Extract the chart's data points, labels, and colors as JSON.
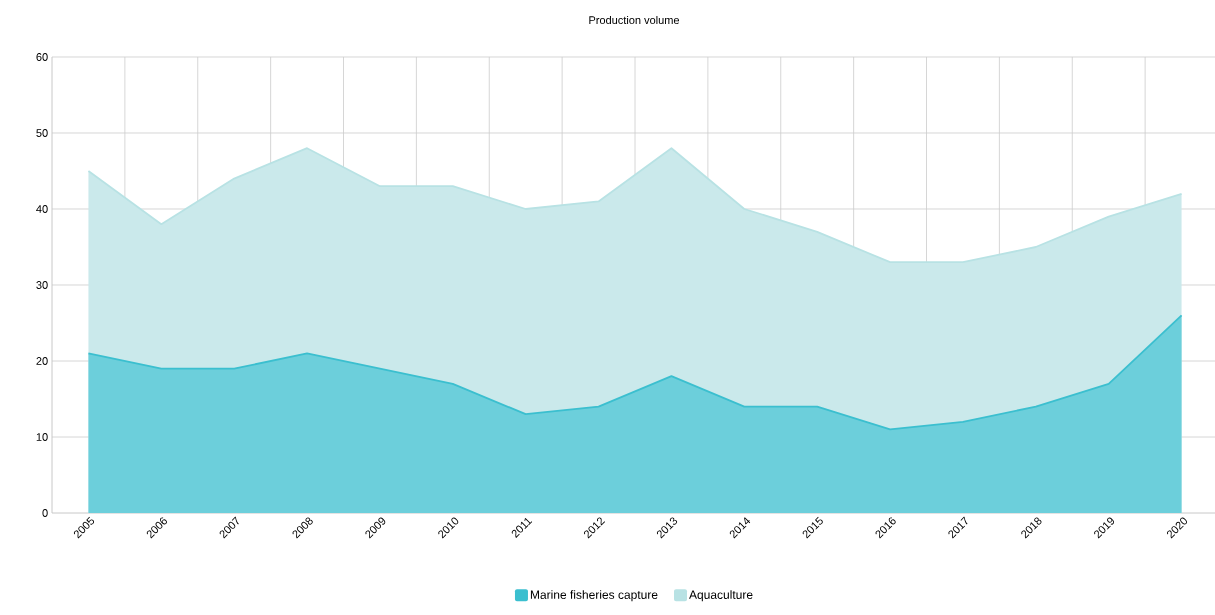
{
  "chart_data": {
    "type": "area",
    "title": "Production volume",
    "categories": [
      "2005",
      "2006",
      "2007",
      "2008",
      "2009",
      "2010",
      "2011",
      "2012",
      "2013",
      "2014",
      "2015",
      "2016",
      "2017",
      "2018",
      "2019",
      "2020"
    ],
    "series": [
      {
        "name": "Marine fisheries capture",
        "color": "#3bbfcf",
        "values": [
          21,
          19,
          19,
          21,
          19,
          17,
          13,
          14,
          18,
          14,
          14,
          11,
          12,
          14,
          17,
          26
        ]
      },
      {
        "name": "Aquaculture",
        "color": "#b8e2e4",
        "values": [
          45,
          38,
          44,
          48,
          43,
          43,
          40,
          41,
          48,
          40,
          37,
          33,
          33,
          35,
          39,
          42
        ]
      }
    ],
    "ylim": [
      0,
      60
    ],
    "yticks": [
      0,
      10,
      20,
      30,
      40,
      50,
      60
    ],
    "grid": true,
    "legend": "bottom"
  }
}
